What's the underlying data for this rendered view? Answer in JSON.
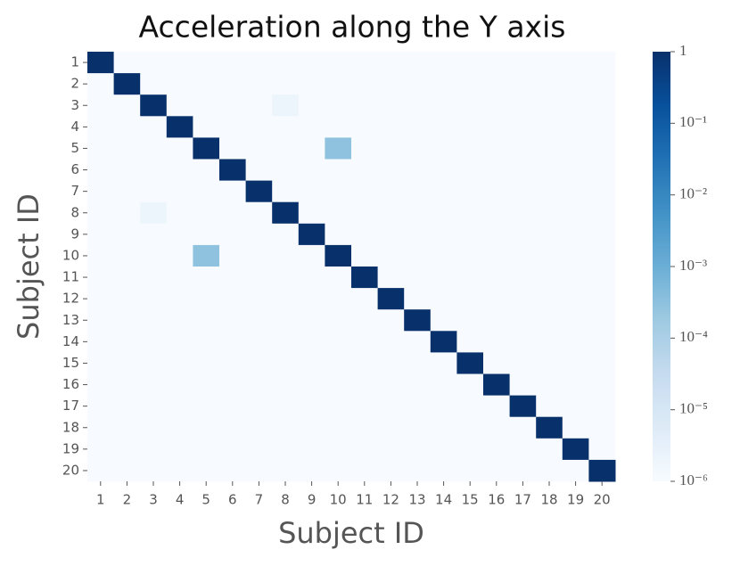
{
  "chart_data": {
    "type": "heatmap",
    "title": "Acceleration along the Y axis",
    "x_label": "Subject ID",
    "y_label": "Subject ID",
    "x": [
      1,
      2,
      3,
      4,
      5,
      6,
      7,
      8,
      9,
      10,
      11,
      12,
      13,
      14,
      15,
      16,
      17,
      18,
      19,
      20
    ],
    "y": [
      1,
      2,
      3,
      4,
      5,
      6,
      7,
      8,
      9,
      10,
      11,
      12,
      13,
      14,
      15,
      16,
      17,
      18,
      19,
      20
    ],
    "values": [
      [
        1,
        1e-06,
        1e-06,
        1e-06,
        1e-06,
        1e-06,
        1e-06,
        1e-06,
        1e-06,
        1e-06,
        1e-06,
        1e-06,
        1e-06,
        1e-06,
        1e-06,
        1e-06,
        1e-06,
        1e-06,
        1e-06,
        1e-06
      ],
      [
        1e-06,
        1,
        1e-06,
        1e-06,
        1e-06,
        1e-06,
        1e-06,
        1e-06,
        1e-06,
        1e-06,
        1e-06,
        1e-06,
        1e-06,
        1e-06,
        1e-06,
        1e-06,
        1e-06,
        1e-06,
        1e-06,
        1e-06
      ],
      [
        1e-06,
        1e-06,
        1,
        1e-06,
        1e-06,
        1e-06,
        1e-06,
        2e-06,
        1e-06,
        1e-06,
        1e-06,
        1e-06,
        1e-06,
        1e-06,
        1e-06,
        1e-06,
        1e-06,
        1e-06,
        1e-06,
        1e-06
      ],
      [
        1e-06,
        1e-06,
        1e-06,
        1,
        1e-06,
        1e-06,
        1e-06,
        1e-06,
        1e-06,
        1e-06,
        1e-06,
        1e-06,
        1e-06,
        1e-06,
        1e-06,
        1e-06,
        1e-06,
        1e-06,
        1e-06,
        1e-06
      ],
      [
        1e-06,
        1e-06,
        1e-06,
        1e-06,
        1,
        1e-06,
        1e-06,
        1e-06,
        1e-06,
        0.0003,
        1e-06,
        1e-06,
        1e-06,
        1e-06,
        1e-06,
        1e-06,
        1e-06,
        1e-06,
        1e-06,
        1e-06
      ],
      [
        1e-06,
        1e-06,
        1e-06,
        1e-06,
        1e-06,
        1,
        1e-06,
        1e-06,
        1e-06,
        1e-06,
        1e-06,
        1e-06,
        1e-06,
        1e-06,
        1e-06,
        1e-06,
        1e-06,
        1e-06,
        1e-06,
        1e-06
      ],
      [
        1e-06,
        1e-06,
        1e-06,
        1e-06,
        1e-06,
        1e-06,
        1,
        1e-06,
        1e-06,
        1e-06,
        1e-06,
        1e-06,
        1e-06,
        1e-06,
        1e-06,
        1e-06,
        1e-06,
        1e-06,
        1e-06,
        1e-06
      ],
      [
        1e-06,
        1e-06,
        2e-06,
        1e-06,
        1e-06,
        1e-06,
        1e-06,
        1,
        1e-06,
        1e-06,
        1e-06,
        1e-06,
        1e-06,
        1e-06,
        1e-06,
        1e-06,
        1e-06,
        1e-06,
        1e-06,
        1e-06
      ],
      [
        1e-06,
        1e-06,
        1e-06,
        1e-06,
        1e-06,
        1e-06,
        1e-06,
        1e-06,
        1,
        1e-06,
        1e-06,
        1e-06,
        1e-06,
        1e-06,
        1e-06,
        1e-06,
        1e-06,
        1e-06,
        1e-06,
        1e-06
      ],
      [
        1e-06,
        1e-06,
        1e-06,
        1e-06,
        0.0003,
        1e-06,
        1e-06,
        1e-06,
        1e-06,
        1,
        1e-06,
        1e-06,
        1e-06,
        1e-06,
        1e-06,
        1e-06,
        1e-06,
        1e-06,
        1e-06,
        1e-06
      ],
      [
        1e-06,
        1e-06,
        1e-06,
        1e-06,
        1e-06,
        1e-06,
        1e-06,
        1e-06,
        1e-06,
        1e-06,
        1,
        1e-06,
        1e-06,
        1e-06,
        1e-06,
        1e-06,
        1e-06,
        1e-06,
        1e-06,
        1e-06
      ],
      [
        1e-06,
        1e-06,
        1e-06,
        1e-06,
        1e-06,
        1e-06,
        1e-06,
        1e-06,
        1e-06,
        1e-06,
        1e-06,
        1,
        1e-06,
        1e-06,
        1e-06,
        1e-06,
        1e-06,
        1e-06,
        1e-06,
        1e-06
      ],
      [
        1e-06,
        1e-06,
        1e-06,
        1e-06,
        1e-06,
        1e-06,
        1e-06,
        1e-06,
        1e-06,
        1e-06,
        1e-06,
        1e-06,
        1,
        1e-06,
        1e-06,
        1e-06,
        1e-06,
        1e-06,
        1e-06,
        1e-06
      ],
      [
        1e-06,
        1e-06,
        1e-06,
        1e-06,
        1e-06,
        1e-06,
        1e-06,
        1e-06,
        1e-06,
        1e-06,
        1e-06,
        1e-06,
        1e-06,
        1,
        1e-06,
        1e-06,
        1e-06,
        1e-06,
        1e-06,
        1e-06
      ],
      [
        1e-06,
        1e-06,
        1e-06,
        1e-06,
        1e-06,
        1e-06,
        1e-06,
        1e-06,
        1e-06,
        1e-06,
        1e-06,
        1e-06,
        1e-06,
        1e-06,
        1,
        1e-06,
        1e-06,
        1e-06,
        1e-06,
        1e-06
      ],
      [
        1e-06,
        1e-06,
        1e-06,
        1e-06,
        1e-06,
        1e-06,
        1e-06,
        1e-06,
        1e-06,
        1e-06,
        1e-06,
        1e-06,
        1e-06,
        1e-06,
        1e-06,
        1,
        1e-06,
        1e-06,
        1e-06,
        1e-06
      ],
      [
        1e-06,
        1e-06,
        1e-06,
        1e-06,
        1e-06,
        1e-06,
        1e-06,
        1e-06,
        1e-06,
        1e-06,
        1e-06,
        1e-06,
        1e-06,
        1e-06,
        1e-06,
        1e-06,
        1,
        1e-06,
        1e-06,
        1e-06
      ],
      [
        1e-06,
        1e-06,
        1e-06,
        1e-06,
        1e-06,
        1e-06,
        1e-06,
        1e-06,
        1e-06,
        1e-06,
        1e-06,
        1e-06,
        1e-06,
        1e-06,
        1e-06,
        1e-06,
        1e-06,
        1,
        1e-06,
        1e-06
      ],
      [
        1e-06,
        1e-06,
        1e-06,
        1e-06,
        1e-06,
        1e-06,
        1e-06,
        1e-06,
        1e-06,
        1e-06,
        1e-06,
        1e-06,
        1e-06,
        1e-06,
        1e-06,
        1e-06,
        1e-06,
        1e-06,
        1,
        1e-06
      ],
      [
        1e-06,
        1e-06,
        1e-06,
        1e-06,
        1e-06,
        1e-06,
        1e-06,
        1e-06,
        1e-06,
        1e-06,
        1e-06,
        1e-06,
        1e-06,
        1e-06,
        1e-06,
        1e-06,
        1e-06,
        1e-06,
        1e-06,
        1
      ]
    ],
    "colormap": "Blues",
    "color_scale": "log",
    "clim": [
      1e-06,
      1
    ],
    "cticks": [
      {
        "value": 1e-06,
        "label": "10⁻⁶"
      },
      {
        "value": 1e-05,
        "label": "10⁻⁵"
      },
      {
        "value": 0.0001,
        "label": "10⁻⁴"
      },
      {
        "value": 0.001,
        "label": "10⁻³"
      },
      {
        "value": 0.01,
        "label": "10⁻²"
      },
      {
        "value": 0.1,
        "label": "10⁻¹"
      },
      1
    ]
  }
}
